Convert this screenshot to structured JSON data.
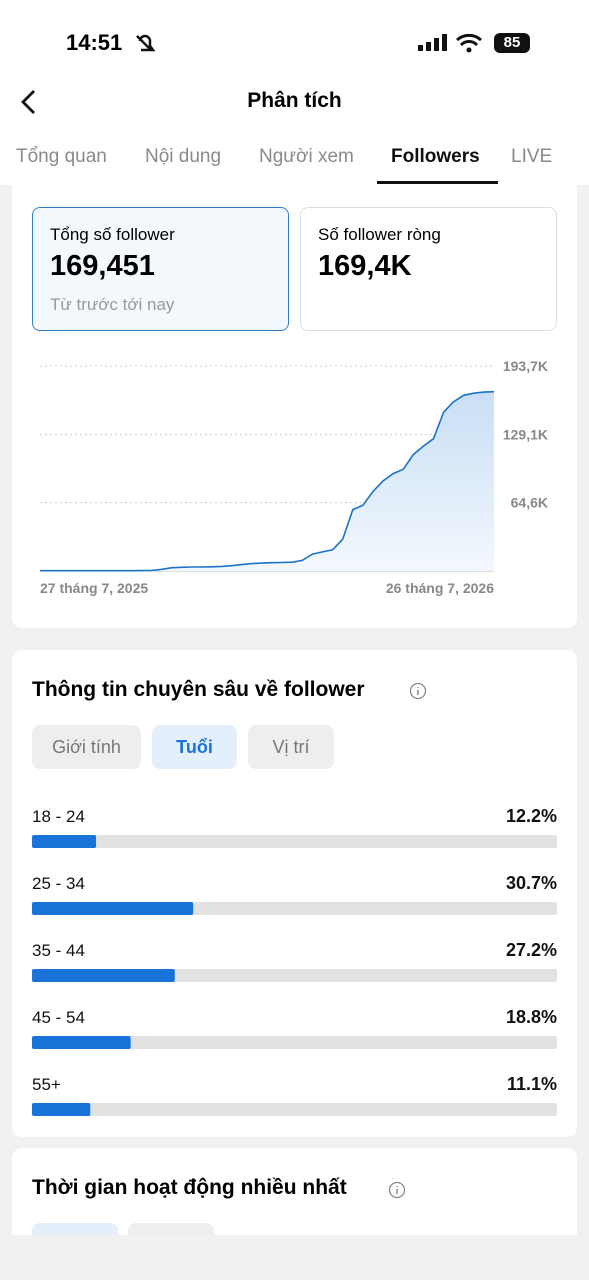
{
  "status_bar": {
    "time": "14:51",
    "battery": "85"
  },
  "header": {
    "title": "Phân tích"
  },
  "tabs": [
    "Tổng quan",
    "Nội dung",
    "Người xem",
    "Followers",
    "LIVE"
  ],
  "active_tab": 3,
  "summary_cards": [
    {
      "label": "Tổng số follower",
      "value": "169,451",
      "note": "Từ trước tới nay"
    },
    {
      "label": "Số follower ròng",
      "value": "169,4K"
    }
  ],
  "chart": {
    "type": "area",
    "color": "#1a73c8",
    "values": [
      300,
      300,
      300,
      300,
      300,
      300,
      300,
      300,
      300,
      300,
      400,
      500,
      1500,
      3000,
      3500,
      3800,
      3800,
      4000,
      4300,
      5000,
      6000,
      7000,
      7500,
      7800,
      8000,
      8300,
      10000,
      16000,
      18000,
      20000,
      30000,
      58000,
      62000,
      75000,
      85000,
      92000,
      96000,
      110000,
      118000,
      125000,
      150000,
      160000,
      166000,
      168000,
      169000,
      169451
    ],
    "ylim": [
      0,
      193700
    ],
    "yticks": [
      {
        "value": 64600,
        "label": "64,6K"
      },
      {
        "value": 129100,
        "label": "129,1K"
      },
      {
        "value": 193700,
        "label": "193,7K"
      }
    ],
    "x_labels": [
      "27 tháng 7, 2025",
      "26 tháng 7, 2026"
    ],
    "grid": true
  },
  "insights": {
    "title": "Thông tin chuyên sâu về follower",
    "filters": [
      "Giới tính",
      "Tuổi",
      "Vị trí"
    ],
    "active_filter": 1,
    "categories": [
      "18 - 24",
      "25 - 34",
      "35 - 44",
      "45 - 54",
      "55+"
    ],
    "values": [
      12.2,
      30.7,
      27.2,
      18.8,
      11.1
    ],
    "value_labels": [
      "12.2%",
      "30.7%",
      "27.2%",
      "18.8%",
      "11.1%"
    ],
    "xlim": [
      0,
      100
    ],
    "color": "#1a73d9"
  },
  "activity": {
    "title": "Thời gian hoạt động nhiều nhất"
  }
}
